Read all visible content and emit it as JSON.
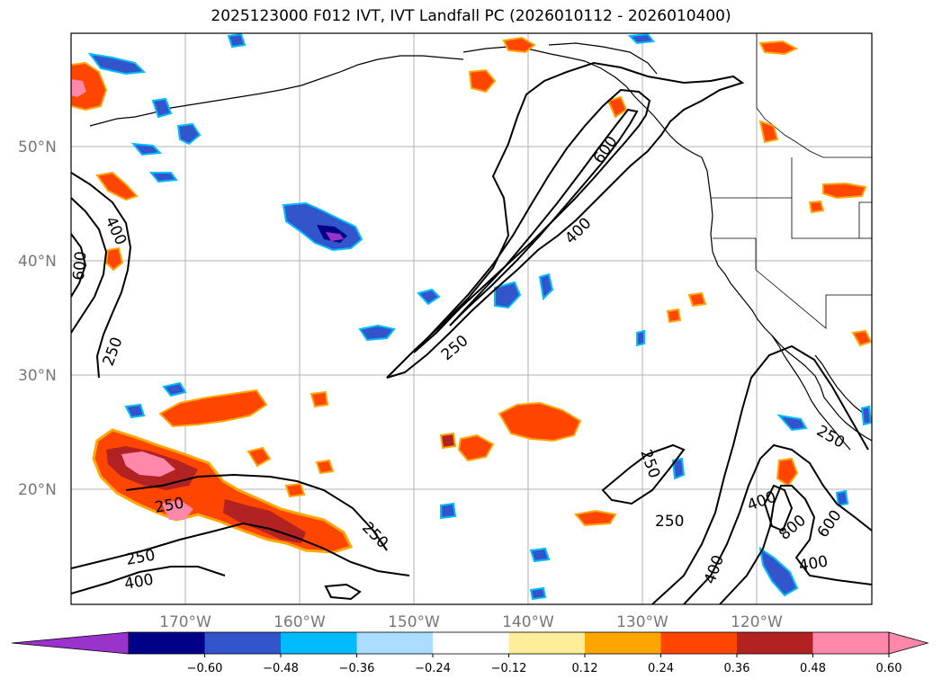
{
  "title": "2025123000 F012 IVT, IVT Landfall PC (2026010112 - 2026010400)",
  "lat_labels": [
    "50°N",
    "40°N",
    "30°N",
    "20°N"
  ],
  "lon_labels": [
    "170°W",
    "160°W",
    "150°W",
    "140°W",
    "130°W",
    "120°W"
  ],
  "colorbar": {
    "colors": [
      "#9933cc",
      "#000088",
      "#3355cc",
      "#00bbff",
      "#aaddff",
      "#ffffff",
      "#ffee99",
      "#ffa500",
      "#ff4500",
      "#b22222",
      "#ff88aa",
      "#ff88aa"
    ],
    "tick_labels": [
      "−0.60",
      "−0.48",
      "−0.36",
      "−0.24",
      "−0.12",
      "0.12",
      "0.24",
      "0.36",
      "0.48",
      "0.60"
    ]
  },
  "contour_labels": [
    "250",
    "400",
    "600",
    "800"
  ]
}
